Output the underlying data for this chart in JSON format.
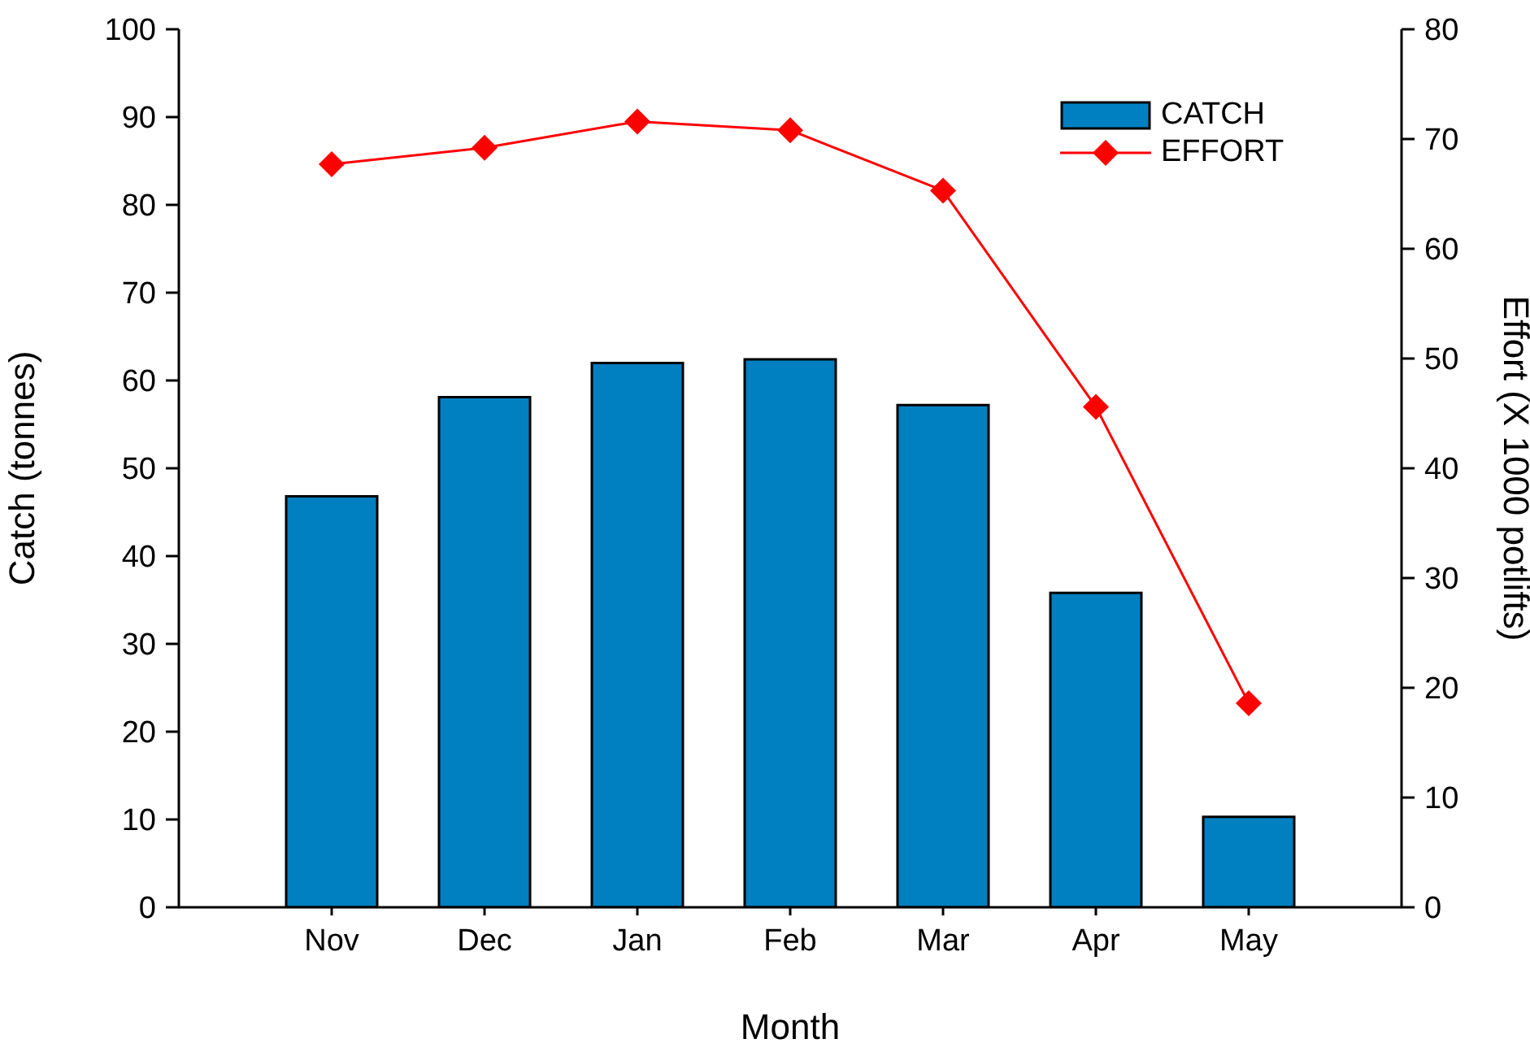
{
  "chart_data": {
    "type": "bar",
    "xlabel": "Month",
    "ylabel": "Catch (tonnes)",
    "y2label": "Effort (X 1000 potlifts)",
    "categories": [
      "Nov",
      "Dec",
      "Jan",
      "Feb",
      "Mar",
      "Apr",
      "May"
    ],
    "series": [
      {
        "name": "CATCH",
        "color": "#0080c0",
        "values": [
          46.8,
          58.1,
          62.0,
          62.4,
          57.2,
          35.8,
          10.3
        ]
      },
      {
        "name": "EFFORT",
        "type": "line",
        "axis": "y2",
        "color": "#ff0000",
        "marker": "diamond",
        "values": [
          67.7,
          69.2,
          71.6,
          70.8,
          65.3,
          45.6,
          18.6
        ]
      }
    ],
    "ylim": [
      0,
      100
    ],
    "yticks": [
      0,
      10,
      20,
      30,
      40,
      50,
      60,
      70,
      80,
      90,
      100
    ],
    "y2lim": [
      0,
      80
    ],
    "y2ticks": [
      0,
      10,
      20,
      30,
      40,
      50,
      60,
      70,
      80
    ],
    "grid": false,
    "legend": "top right"
  }
}
